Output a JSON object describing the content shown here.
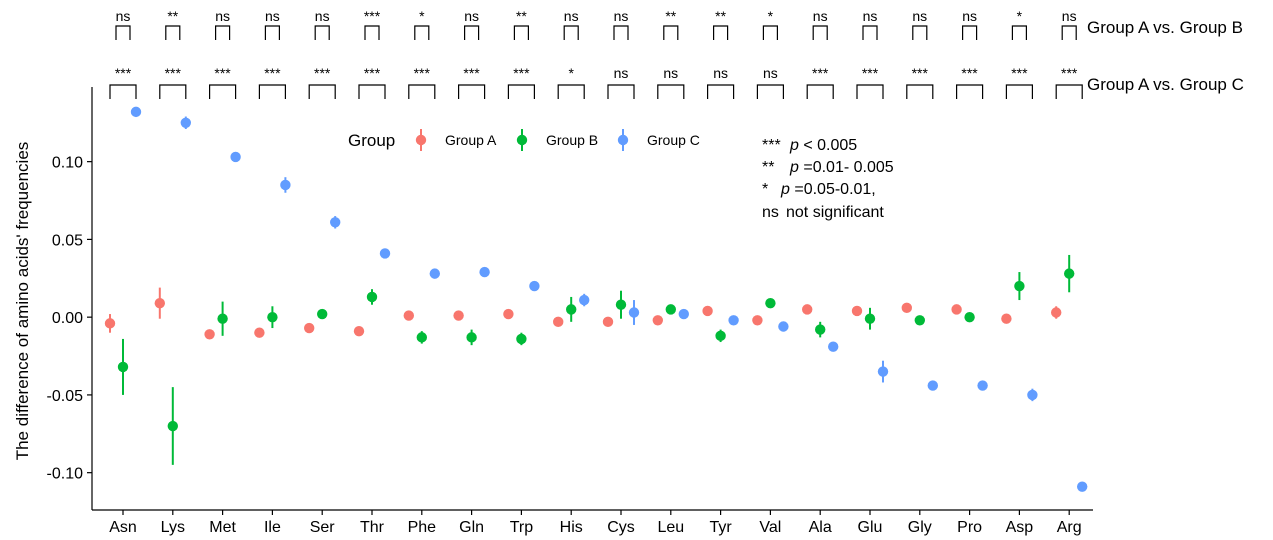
{
  "chart_data": {
    "type": "scatter",
    "title": "",
    "xlabel": "",
    "ylabel": "The difference of amino acids' frequencies",
    "ylim": [
      -0.124,
      0.148
    ],
    "y_ticks": [
      "0.10",
      "0.05",
      "0.00",
      "-0.05",
      "-0.10"
    ],
    "y_tick_values": [
      0.1,
      0.05,
      0.0,
      -0.05,
      -0.1
    ],
    "grid": false,
    "categories": [
      "Asn",
      "Lys",
      "Met",
      "Ile",
      "Ser",
      "Thr",
      "Phe",
      "Gln",
      "Trp",
      "His",
      "Cys",
      "Leu",
      "Tyr",
      "Val",
      "Ala",
      "Glu",
      "Gly",
      "Pro",
      "Asp",
      "Arg"
    ],
    "legend": {
      "title": "Group",
      "placement": "top-center"
    },
    "series": [
      {
        "name": "Group A",
        "color": "#F8766D",
        "values": [
          -0.004,
          0.009,
          -0.011,
          -0.01,
          -0.007,
          -0.009,
          0.001,
          0.001,
          0.002,
          -0.003,
          -0.003,
          -0.002,
          0.004,
          -0.002,
          0.005,
          0.004,
          0.006,
          0.005,
          -0.001,
          0.003
        ],
        "errors": [
          0.006,
          0.01,
          0.002,
          0.003,
          0.002,
          0.002,
          0.002,
          0.002,
          0.003,
          0.002,
          0.003,
          0.002,
          0.002,
          0.002,
          0.002,
          0.003,
          0.002,
          0.002,
          0.002,
          0.004
        ]
      },
      {
        "name": "Group B",
        "color": "#00BA38",
        "values": [
          -0.032,
          -0.07,
          -0.001,
          0.0,
          0.002,
          0.013,
          -0.013,
          -0.013,
          -0.014,
          0.005,
          0.008,
          0.005,
          -0.012,
          0.009,
          -0.008,
          -0.001,
          -0.002,
          0.0,
          0.02,
          0.028
        ],
        "errors": [
          0.018,
          0.025,
          0.011,
          0.007,
          0.003,
          0.005,
          0.004,
          0.005,
          0.004,
          0.008,
          0.009,
          0.002,
          0.004,
          0.003,
          0.005,
          0.007,
          0.002,
          0.002,
          0.009,
          0.012
        ]
      },
      {
        "name": "Group C",
        "color": "#619CFF",
        "values": [
          0.132,
          0.125,
          0.103,
          0.085,
          0.061,
          0.041,
          0.028,
          0.029,
          0.02,
          0.011,
          0.003,
          0.002,
          -0.002,
          -0.006,
          -0.019,
          -0.035,
          -0.044,
          -0.044,
          -0.05,
          -0.109
        ],
        "errors": [
          0.003,
          0.004,
          0.002,
          0.005,
          0.004,
          0.002,
          0.002,
          0.003,
          0.002,
          0.004,
          0.008,
          0.002,
          0.002,
          0.002,
          0.002,
          0.007,
          0.002,
          0.003,
          0.004,
          0.002
        ]
      }
    ],
    "comparisons": [
      {
        "label": "Group A vs. Group B",
        "marks": [
          "ns",
          "**",
          "ns",
          "ns",
          "ns",
          "***",
          "*",
          "ns",
          "**",
          "ns",
          "ns",
          "**",
          "**",
          "*",
          "ns",
          "ns",
          "ns",
          "ns",
          "*",
          "ns"
        ]
      },
      {
        "label": "Group A vs. Group C",
        "marks": [
          "***",
          "***",
          "***",
          "***",
          "***",
          "***",
          "***",
          "***",
          "***",
          "*",
          "ns",
          "ns",
          "ns",
          "ns",
          "***",
          "***",
          "***",
          "***",
          "***",
          "***"
        ]
      }
    ],
    "significance_note": [
      {
        "mark": "***",
        "text": " < 0.005"
      },
      {
        "mark": "**",
        "text": " =0.01- 0.005"
      },
      {
        "mark": "*",
        "text": " =0.05-0.01,"
      },
      {
        "mark": "ns",
        "text": "not significant"
      }
    ],
    "p_symbol": "p"
  }
}
